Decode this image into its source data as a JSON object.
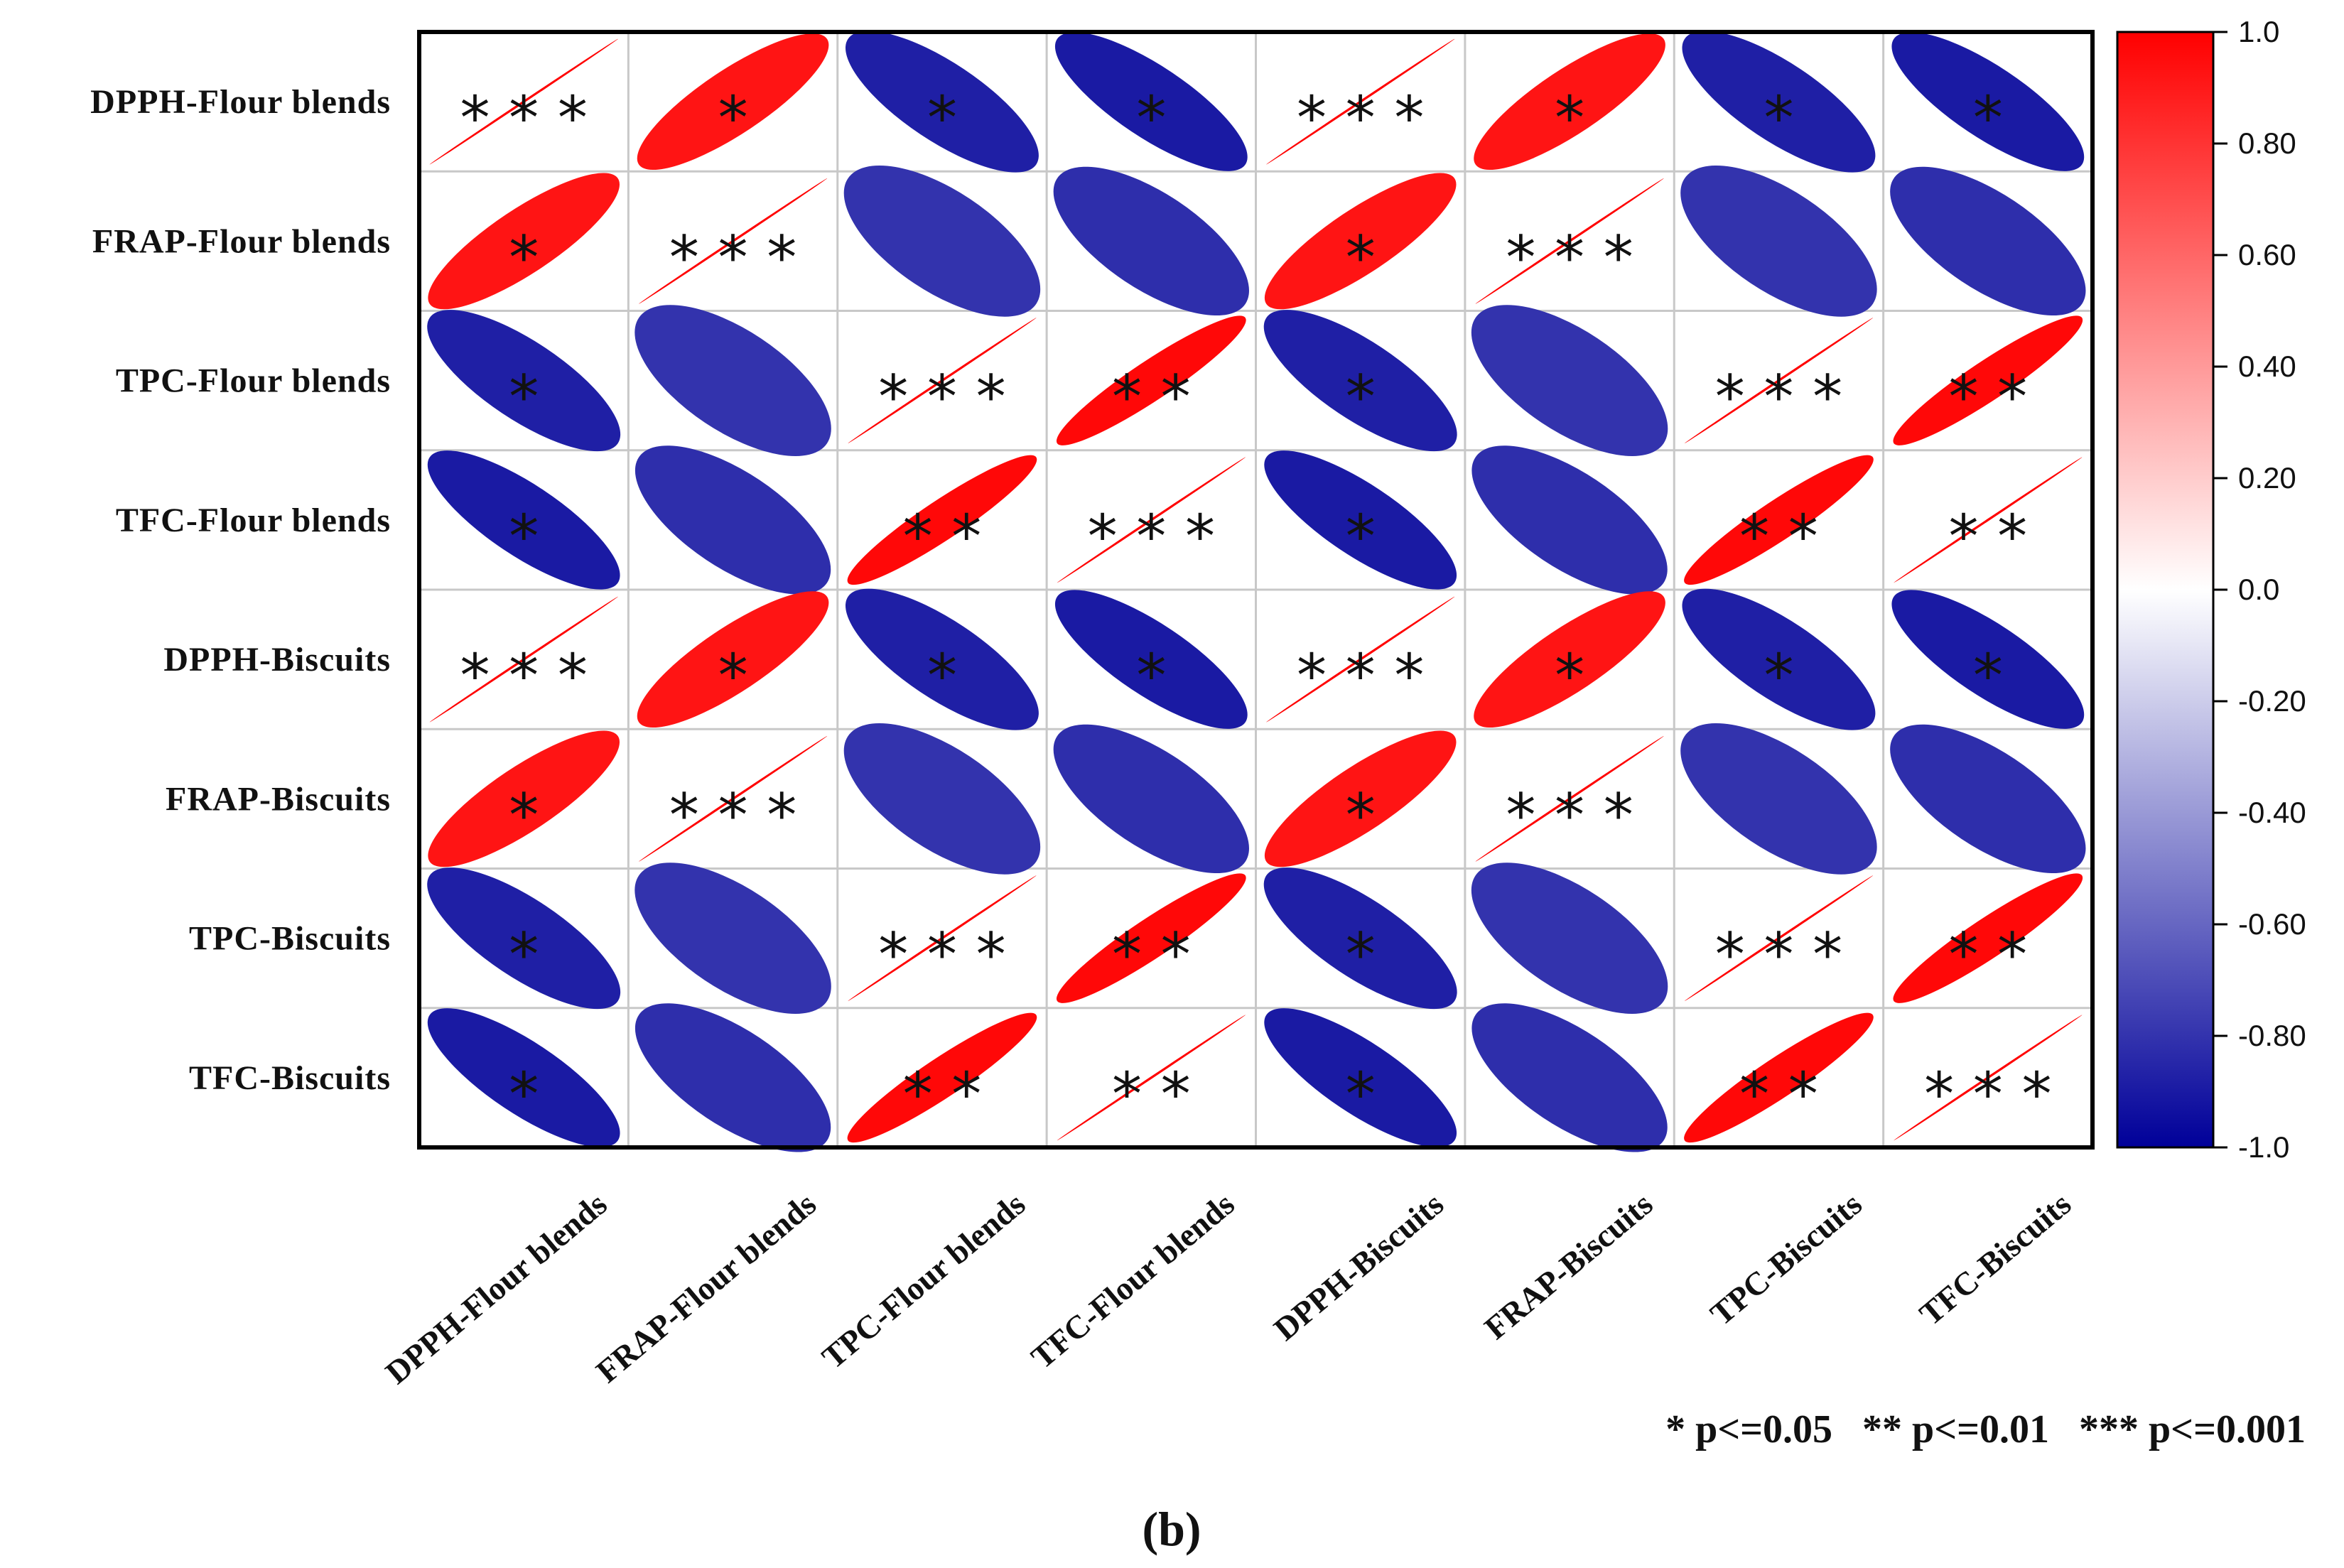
{
  "chart_data": {
    "type": "heatmap",
    "subtype": "correlation-ellipse-matrix",
    "variables": [
      "DPPH-Flour blends",
      "FRAP-Flour blends",
      "TPC-Flour blends",
      "TFC-Flour blends",
      "DPPH-Biscuits",
      "FRAP-Biscuits",
      "TPC-Biscuits",
      "TFC-Biscuits"
    ],
    "correlations": [
      [
        1.0,
        0.92,
        -0.88,
        -0.9,
        1.0,
        0.92,
        -0.88,
        -0.9
      ],
      [
        0.92,
        1.0,
        -0.8,
        -0.82,
        0.92,
        1.0,
        -0.8,
        -0.82
      ],
      [
        -0.88,
        -0.8,
        1.0,
        0.97,
        -0.88,
        -0.8,
        1.0,
        0.97
      ],
      [
        -0.9,
        -0.82,
        0.97,
        1.0,
        -0.9,
        -0.82,
        0.97,
        1.0
      ],
      [
        1.0,
        0.92,
        -0.88,
        -0.9,
        1.0,
        0.92,
        -0.88,
        -0.9
      ],
      [
        0.92,
        1.0,
        -0.8,
        -0.82,
        0.92,
        1.0,
        -0.8,
        -0.82
      ],
      [
        -0.88,
        -0.8,
        1.0,
        0.97,
        -0.88,
        -0.8,
        1.0,
        0.97
      ],
      [
        -0.9,
        -0.82,
        0.97,
        1.0,
        -0.9,
        -0.82,
        0.97,
        1.0
      ]
    ],
    "significance": [
      [
        "***",
        "*",
        "*",
        "*",
        "***",
        "*",
        "*",
        "*"
      ],
      [
        "*",
        "***",
        "",
        "",
        "*",
        "***",
        "",
        ""
      ],
      [
        "*",
        "",
        "***",
        "**",
        "*",
        "",
        "***",
        "**"
      ],
      [
        "*",
        "",
        "**",
        "***",
        "*",
        "",
        "**",
        "**"
      ],
      [
        "***",
        "*",
        "*",
        "*",
        "***",
        "*",
        "*",
        "*"
      ],
      [
        "*",
        "***",
        "",
        "",
        "*",
        "***",
        "",
        ""
      ],
      [
        "*",
        "",
        "***",
        "**",
        "*",
        "",
        "***",
        "**"
      ],
      [
        "*",
        "",
        "**",
        "**",
        "*",
        "",
        "**",
        "***"
      ]
    ],
    "colorbar": {
      "range": [
        -1.0,
        1.0
      ],
      "ticks": [
        "1.0",
        "0.80",
        "0.60",
        "0.40",
        "0.20",
        "0.0",
        "-0.20",
        "-0.40",
        "-0.60",
        "-0.80",
        "-1.0"
      ],
      "colors": {
        "positive": "#ff0000",
        "zero": "#ffffff",
        "negative": "#000099"
      }
    },
    "significance_legend": "* p<=0.05   ** p<=0.01   *** p<=0.001"
  },
  "caption": "(b)"
}
